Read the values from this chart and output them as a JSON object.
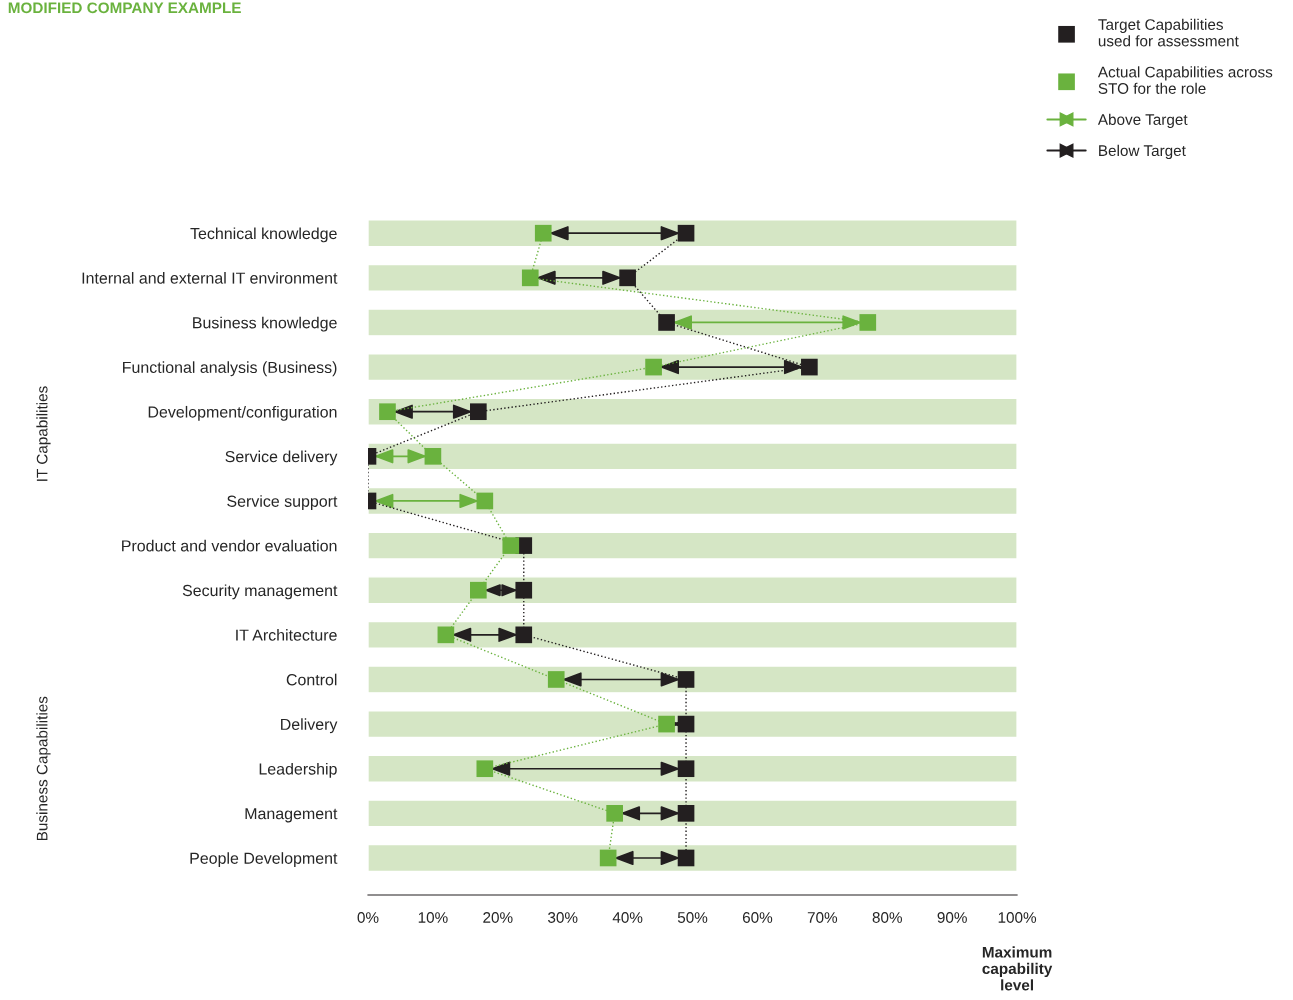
{
  "chart_data": {
    "type": "line",
    "title": "MODIFIED COMPANY EXAMPLE",
    "xlabel": "Maximum capability level",
    "orientation": "horizontal",
    "categories": [
      "Technical knowledge",
      "Internal and external IT environment",
      "Business knowledge",
      "Functional analysis (Business)",
      "Development/configuration",
      "Service delivery",
      "Service support",
      "Product and vendor evaluation",
      "Security management",
      "IT Architecture",
      "Control",
      "Delivery",
      "Leadership",
      "Management",
      "People Development"
    ],
    "series": [
      {
        "type": "bar",
        "color": "#d5e6c5",
        "values": [
          100,
          100,
          100,
          100,
          100,
          100,
          100,
          100,
          100,
          100,
          100,
          100,
          100,
          100,
          100
        ]
      },
      {
        "name": "Target Capabilities used for assessment",
        "color": "#231f20",
        "values": [
          49,
          40,
          46,
          68,
          17,
          0,
          0,
          24,
          24,
          24,
          49,
          49,
          49,
          49,
          49
        ]
      },
      {
        "name": "Actual Capabilities across STO for the role",
        "color": "#6ab23e",
        "values": [
          27,
          25,
          77,
          44,
          3,
          10,
          18,
          22,
          17,
          12,
          29,
          46,
          18,
          38,
          37
        ]
      }
    ],
    "line_style": "dotted",
    "marker": "square",
    "xlim": [
      0,
      100
    ],
    "xticks": [
      {
        "value": 0,
        "label": "0%"
      },
      {
        "value": 10,
        "label": "10%"
      },
      {
        "value": 20,
        "label": "20%"
      },
      {
        "value": 30,
        "label": "30%"
      },
      {
        "value": 40,
        "label": "40%"
      },
      {
        "value": 50,
        "label": "50%"
      },
      {
        "value": 60,
        "label": "60%"
      },
      {
        "value": 70,
        "label": "70%"
      },
      {
        "value": 80,
        "label": "80%"
      },
      {
        "value": 90,
        "label": "90%"
      },
      {
        "value": 100,
        "label": "100%"
      }
    ],
    "legend": "top right",
    "annotations": [
      "IT Capabilities",
      "Business Capabilities",
      "Above Target",
      "Below Target"
    ]
  }
}
